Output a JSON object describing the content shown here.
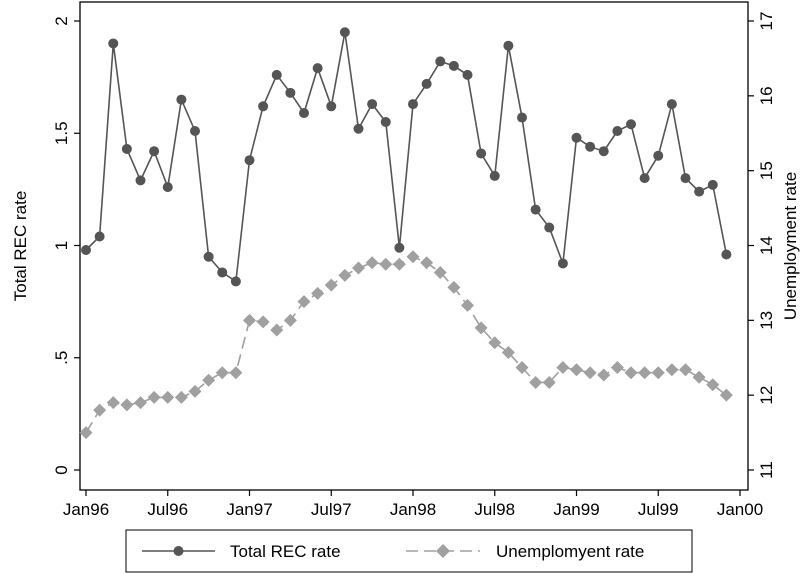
{
  "chart_data": {
    "type": "line",
    "x_axis": {
      "ticks": [
        "Jan96",
        "Jul96",
        "Jan97",
        "Jul97",
        "Jan98",
        "Jul98",
        "Jan99",
        "Jul99",
        "Jan00"
      ],
      "range_months": [
        0,
        48
      ]
    },
    "y_left": {
      "label": "Total REC rate",
      "ticks": [
        "0",
        ".5",
        "1",
        "1.5",
        "2"
      ],
      "tick_values": [
        0,
        0.5,
        1,
        1.5,
        2
      ],
      "range": [
        0,
        2
      ]
    },
    "y_right": {
      "label": "Unemployment rate",
      "ticks": [
        "11",
        "12",
        "13",
        "14",
        "15",
        "16",
        "17"
      ],
      "tick_values": [
        11,
        12,
        13,
        14,
        15,
        16,
        17
      ],
      "range": [
        11,
        17
      ]
    },
    "series": [
      {
        "name": "Total REC rate",
        "axis": "left",
        "color": "#555555",
        "marker": "circle",
        "dash": "solid",
        "x": [
          "1996-01",
          "1996-02",
          "1996-03",
          "1996-04",
          "1996-05",
          "1996-06",
          "1996-07",
          "1996-08",
          "1996-09",
          "1996-10",
          "1996-11",
          "1996-12",
          "1997-01",
          "1997-02",
          "1997-03",
          "1997-04",
          "1997-05",
          "1997-06",
          "1997-07",
          "1997-08",
          "1997-09",
          "1997-10",
          "1997-11",
          "1997-12",
          "1998-01",
          "1998-02",
          "1998-03",
          "1998-04",
          "1998-05",
          "1998-06",
          "1998-07",
          "1998-08",
          "1998-09",
          "1998-10",
          "1998-11",
          "1998-12",
          "1999-01",
          "1999-02",
          "1999-03",
          "1999-04",
          "1999-05",
          "1999-06",
          "1999-07",
          "1999-08",
          "1999-09",
          "1999-10",
          "1999-11",
          "1999-12"
        ],
        "values": [
          0.98,
          1.04,
          1.9,
          1.43,
          1.29,
          1.42,
          1.26,
          1.65,
          1.51,
          0.95,
          0.88,
          0.84,
          1.38,
          1.62,
          1.76,
          1.68,
          1.59,
          1.79,
          1.62,
          1.95,
          1.52,
          1.63,
          1.55,
          0.99,
          1.63,
          1.72,
          1.82,
          1.8,
          1.76,
          1.41,
          1.31,
          1.89,
          1.57,
          1.16,
          1.08,
          0.92,
          1.48,
          1.44,
          1.42,
          1.51,
          1.54,
          1.3,
          1.4,
          1.63,
          1.3,
          1.24,
          1.27,
          0.96
        ]
      },
      {
        "name": "Unemplomyent rate",
        "axis": "right",
        "color": "#a0a0a0",
        "marker": "diamond",
        "dash": "long-dash",
        "x": [
          "1996-01",
          "1996-02",
          "1996-03",
          "1996-04",
          "1996-05",
          "1996-06",
          "1996-07",
          "1996-08",
          "1996-09",
          "1996-10",
          "1996-11",
          "1996-12",
          "1997-01",
          "1997-02",
          "1997-03",
          "1997-04",
          "1997-05",
          "1997-06",
          "1997-07",
          "1997-08",
          "1997-09",
          "1997-10",
          "1997-11",
          "1997-12",
          "1998-01",
          "1998-02",
          "1998-03",
          "1998-04",
          "1998-05",
          "1998-06",
          "1998-07",
          "1998-08",
          "1998-09",
          "1998-10",
          "1998-11",
          "1998-12",
          "1999-01",
          "1999-02",
          "1999-03",
          "1999-04",
          "1999-05",
          "1999-06",
          "1999-07",
          "1999-08",
          "1999-09",
          "1999-10",
          "1999-11",
          "1999-12"
        ],
        "values": [
          11.5,
          11.8,
          11.9,
          11.87,
          11.9,
          11.97,
          11.97,
          11.97,
          12.05,
          12.2,
          12.3,
          12.3,
          13.0,
          12.98,
          12.87,
          13.0,
          13.25,
          13.36,
          13.47,
          13.6,
          13.7,
          13.77,
          13.75,
          13.75,
          13.85,
          13.77,
          13.64,
          13.44,
          13.2,
          12.9,
          12.7,
          12.57,
          12.37,
          12.17,
          12.17,
          12.37,
          12.34,
          12.3,
          12.27,
          12.37,
          12.3,
          12.3,
          12.3,
          12.34,
          12.34,
          12.24,
          12.14,
          12.0
        ]
      }
    ],
    "legend": {
      "placement": "bottom",
      "entries": [
        "Total REC rate",
        "Unemplomyent rate"
      ]
    },
    "grid": false
  }
}
